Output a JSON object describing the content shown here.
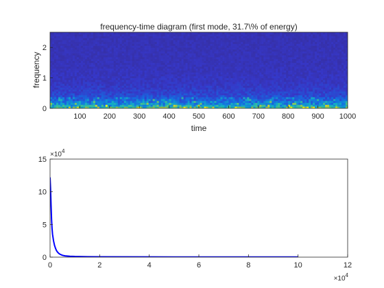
{
  "chart_data": [
    {
      "type": "heatmap",
      "title": "frequency-time diagram (first mode, 31.7\\% of energy)",
      "xlabel": "time",
      "ylabel": "frequency",
      "xlim": [
        0,
        1000
      ],
      "ylim": [
        0,
        2.5
      ],
      "xticks": [
        100,
        200,
        300,
        400,
        500,
        600,
        700,
        800,
        900,
        1000
      ],
      "yticks": [
        0,
        1,
        2
      ],
      "colormap": "parula",
      "colors": {
        "low": "#3a2fc0",
        "mid": "#1f8ad6",
        "high": "#d8d92a"
      },
      "description_of_energy_band": {
        "frequency_range": [
          0,
          0.5
        ],
        "intensity": "high"
      }
    },
    {
      "type": "line",
      "title": "",
      "xlabel": "",
      "ylabel": "",
      "xlim": [
        0,
        120000
      ],
      "ylim": [
        0,
        150000
      ],
      "xticks": [
        0,
        2,
        4,
        6,
        8,
        10,
        12
      ],
      "yticks": [
        0,
        5,
        10,
        15
      ],
      "x_exponent": "10^4",
      "y_exponent": "10^4",
      "series": [
        {
          "color": "#0000ff",
          "x": [
            0,
            200,
            400,
            600,
            800,
            1000,
            1400,
            1800,
            2200,
            2600,
            3000,
            3500,
            4000,
            5000,
            6000,
            8000,
            10000,
            15000,
            20000,
            40000,
            60000,
            80000,
            100000
          ],
          "y": [
            122000,
            105000,
            80000,
            58000,
            44000,
            35000,
            25000,
            18000,
            13500,
            10000,
            7800,
            5800,
            4400,
            2800,
            2000,
            1300,
            1000,
            700,
            500,
            350,
            300,
            250,
            200
          ]
        }
      ]
    }
  ]
}
